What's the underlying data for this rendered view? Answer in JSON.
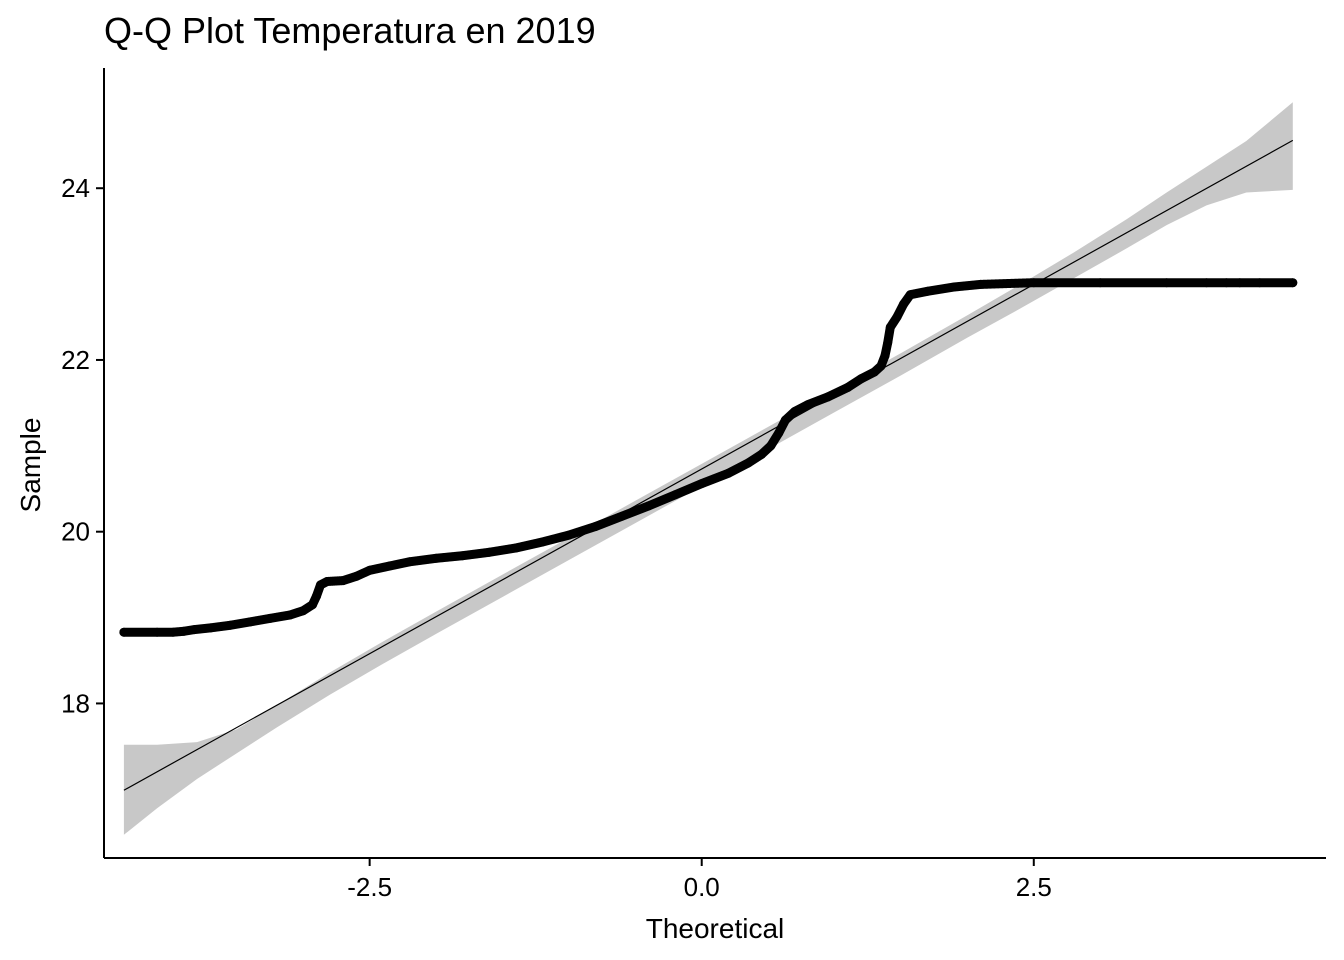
{
  "chart_data": {
    "type": "scatter",
    "title": "Q-Q Plot Temperatura en 2019",
    "xlabel": "Theoretical",
    "ylabel": "Sample",
    "xlim": [
      -4.5,
      4.7
    ],
    "ylim": [
      16.2,
      25.4
    ],
    "x_ticks": [
      -2.5,
      0.0,
      2.5
    ],
    "x_tick_labels": [
      "-2.5",
      "0.0",
      "2.5"
    ],
    "y_ticks": [
      18,
      20,
      22,
      24
    ],
    "y_tick_labels": [
      "18",
      "20",
      "22",
      "24"
    ],
    "grid": false,
    "legend": "none",
    "colors": {
      "points": "#000000",
      "line": "#000000",
      "band": "#c8c8c8"
    },
    "qq_points": [
      [
        -4.35,
        18.83
      ],
      [
        -4.1,
        18.83
      ],
      [
        -3.98,
        18.83
      ],
      [
        -3.9,
        18.84
      ],
      [
        -3.82,
        18.86
      ],
      [
        -3.7,
        18.88
      ],
      [
        -3.55,
        18.91
      ],
      [
        -3.4,
        18.95
      ],
      [
        -3.25,
        18.99
      ],
      [
        -3.1,
        19.03
      ],
      [
        -3.0,
        19.08
      ],
      [
        -2.93,
        19.15
      ],
      [
        -2.9,
        19.25
      ],
      [
        -2.87,
        19.38
      ],
      [
        -2.82,
        19.42
      ],
      [
        -2.7,
        19.43
      ],
      [
        -2.6,
        19.48
      ],
      [
        -2.5,
        19.55
      ],
      [
        -2.35,
        19.6
      ],
      [
        -2.2,
        19.65
      ],
      [
        -2.0,
        19.69
      ],
      [
        -1.8,
        19.72
      ],
      [
        -1.6,
        19.76
      ],
      [
        -1.4,
        19.81
      ],
      [
        -1.2,
        19.88
      ],
      [
        -1.0,
        19.96
      ],
      [
        -0.8,
        20.06
      ],
      [
        -0.6,
        20.18
      ],
      [
        -0.4,
        20.3
      ],
      [
        -0.2,
        20.43
      ],
      [
        0.0,
        20.56
      ],
      [
        0.2,
        20.68
      ],
      [
        0.35,
        20.8
      ],
      [
        0.45,
        20.9
      ],
      [
        0.52,
        21.0
      ],
      [
        0.58,
        21.15
      ],
      [
        0.63,
        21.3
      ],
      [
        0.7,
        21.4
      ],
      [
        0.8,
        21.48
      ],
      [
        0.95,
        21.57
      ],
      [
        1.1,
        21.68
      ],
      [
        1.2,
        21.78
      ],
      [
        1.3,
        21.86
      ],
      [
        1.35,
        21.93
      ],
      [
        1.38,
        22.05
      ],
      [
        1.4,
        22.2
      ],
      [
        1.42,
        22.38
      ],
      [
        1.47,
        22.5
      ],
      [
        1.52,
        22.65
      ],
      [
        1.57,
        22.76
      ],
      [
        1.7,
        22.8
      ],
      [
        1.9,
        22.85
      ],
      [
        2.1,
        22.88
      ],
      [
        2.5,
        22.9
      ],
      [
        3.0,
        22.9
      ],
      [
        3.5,
        22.9
      ],
      [
        3.8,
        22.9
      ],
      [
        3.95,
        22.9
      ],
      [
        4.05,
        22.9
      ],
      [
        4.2,
        22.9
      ],
      [
        4.45,
        22.9
      ]
    ],
    "reference_line": {
      "slope": 0.86,
      "intercept": 20.73,
      "x_range": [
        -4.35,
        4.45
      ]
    },
    "confidence_band": {
      "x": [
        -4.35,
        -4.1,
        -3.8,
        -3.5,
        -3.2,
        -2.8,
        -2.4,
        -2.0,
        -1.5,
        -1.0,
        -0.5,
        0.0,
        0.5,
        1.0,
        1.5,
        2.0,
        2.4,
        2.8,
        3.2,
        3.5,
        3.8,
        4.1,
        4.45
      ],
      "upper": [
        17.52,
        17.52,
        17.55,
        17.7,
        17.98,
        18.36,
        18.72,
        19.07,
        19.5,
        19.93,
        20.36,
        20.79,
        21.22,
        21.65,
        22.08,
        22.52,
        22.88,
        23.25,
        23.64,
        23.95,
        24.25,
        24.55,
        25.0
      ],
      "lower": [
        16.47,
        16.78,
        17.12,
        17.42,
        17.72,
        18.1,
        18.46,
        18.81,
        19.24,
        19.67,
        20.1,
        20.53,
        20.96,
        21.39,
        21.82,
        22.26,
        22.6,
        22.95,
        23.3,
        23.57,
        23.8,
        23.95,
        23.98
      ]
    }
  }
}
